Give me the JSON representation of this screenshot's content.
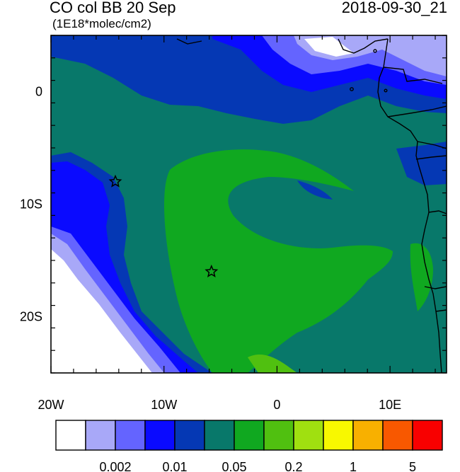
{
  "title": {
    "left": "CO col BB 20 Sep",
    "right": "2018-09-30_21",
    "units": "(1E18*molec/cm2)"
  },
  "axes": {
    "x_ticks": [
      {
        "lon": -20,
        "label": "20W"
      },
      {
        "lon": -10,
        "label": "10W"
      },
      {
        "lon": 0,
        "label": "0"
      },
      {
        "lon": 10,
        "label": "10E"
      }
    ],
    "y_ticks": [
      {
        "lat": 0,
        "label": "0"
      },
      {
        "lat": -10,
        "label": "10S"
      },
      {
        "lat": -20,
        "label": "20S"
      }
    ],
    "lon_range": [
      -20,
      15
    ],
    "lat_range": [
      -25,
      5
    ]
  },
  "colorbar": {
    "colors": [
      "#ffffff",
      "#a8a8f8",
      "#6464ff",
      "#0a0aff",
      "#0538b4",
      "#08786a",
      "#10a820",
      "#50c010",
      "#a0e010",
      "#f8f800",
      "#f8b000",
      "#f85800",
      "#f80000"
    ],
    "labels": [
      {
        "after_index": 1,
        "text": "0.002"
      },
      {
        "after_index": 3,
        "text": "0.01"
      },
      {
        "after_index": 5,
        "text": "0.05"
      },
      {
        "after_index": 7,
        "text": "0.2"
      },
      {
        "after_index": 9,
        "text": "1"
      },
      {
        "after_index": 11,
        "text": "5"
      }
    ]
  },
  "markers": [
    {
      "name": "star-marker-1",
      "lon": -14.3,
      "lat": -8.0
    },
    {
      "name": "star-marker-2",
      "lon": -5.8,
      "lat": -16.0
    }
  ]
}
